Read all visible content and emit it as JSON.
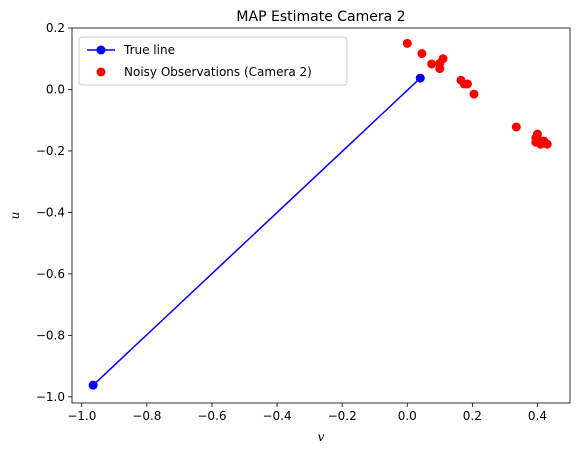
{
  "chart_data": {
    "type": "scatter",
    "title": "MAP Estimate Camera 2",
    "xlabel": "v",
    "ylabel": "u",
    "xlim": [
      -1.03,
      0.5
    ],
    "ylim": [
      -1.02,
      0.2
    ],
    "xticks": [
      -1.0,
      -0.8,
      -0.6,
      -0.4,
      -0.2,
      0.0,
      0.2,
      0.4
    ],
    "xtick_labels": [
      "−1.0",
      "−0.8",
      "−0.6",
      "−0.4",
      "−0.2",
      "0.0",
      "0.2",
      "0.4"
    ],
    "yticks": [
      0.2,
      0.0,
      -0.2,
      -0.4,
      -0.6,
      -0.8,
      -1.0
    ],
    "ytick_labels": [
      "0.2",
      "0.0",
      "−0.2",
      "−0.4",
      "−0.6",
      "−0.8",
      "−1.0"
    ],
    "grid": false,
    "legend_position": "top-left",
    "series": [
      {
        "name": "True line",
        "kind": "line-marker",
        "color": "#0000ff",
        "points": [
          [
            -0.965,
            -0.962
          ],
          [
            0.04,
            0.037
          ]
        ]
      },
      {
        "name": "Noisy Observations (Camera 2)",
        "kind": "scatter",
        "color": "#ff0000",
        "points": [
          [
            0.0,
            0.15
          ],
          [
            0.045,
            0.117
          ],
          [
            0.075,
            0.083
          ],
          [
            0.1,
            0.085
          ],
          [
            0.1,
            0.068
          ],
          [
            0.11,
            0.1
          ],
          [
            0.165,
            0.03
          ],
          [
            0.175,
            0.018
          ],
          [
            0.185,
            0.018
          ],
          [
            0.205,
            -0.015
          ],
          [
            0.335,
            -0.122
          ],
          [
            0.4,
            -0.145
          ],
          [
            0.395,
            -0.158
          ],
          [
            0.405,
            -0.165
          ],
          [
            0.395,
            -0.172
          ],
          [
            0.41,
            -0.178
          ],
          [
            0.42,
            -0.168
          ],
          [
            0.43,
            -0.178
          ]
        ]
      }
    ]
  }
}
